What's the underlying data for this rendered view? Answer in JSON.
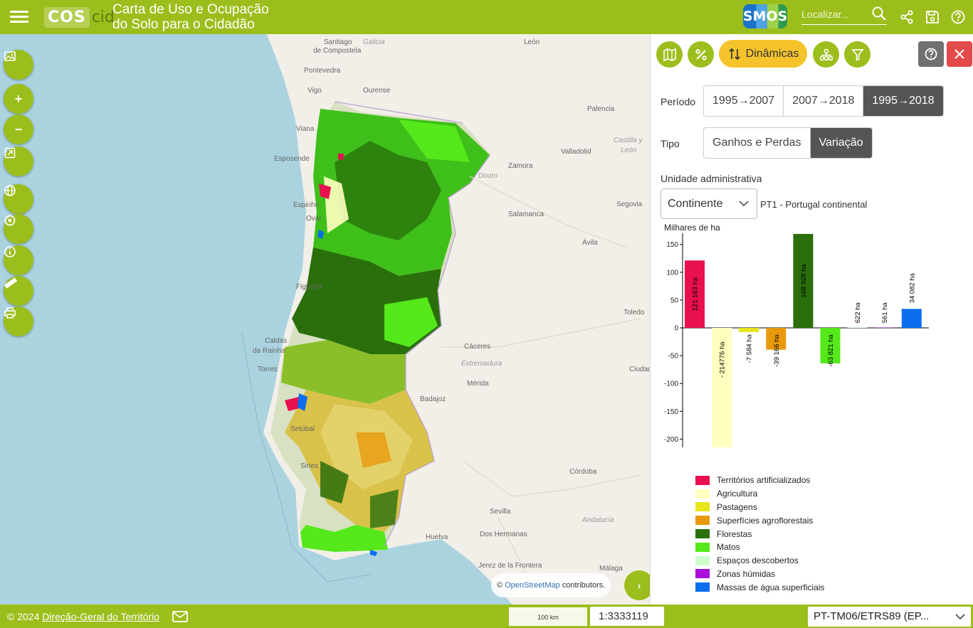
{
  "header": {
    "logo_main": "COS",
    "logo_sub": "cid",
    "title_line1": "Carta de Uso e Ocupação",
    "title_line2": "do Solo para o Cidadão",
    "partner_logo": "SMOS",
    "search_placeholder": "Localizar...",
    "icons": [
      "menu-icon",
      "search-icon",
      "share-icon",
      "save-icon",
      "help-icon"
    ]
  },
  "map": {
    "labels": [
      {
        "text": "Santiago",
        "style": "normal"
      },
      {
        "text": "de Compostela",
        "style": "normal"
      },
      {
        "text": "Galicia",
        "style": "italic"
      },
      {
        "text": "Pontevedra",
        "style": "normal"
      },
      {
        "text": "Vigo",
        "style": "normal"
      },
      {
        "text": "Ourense",
        "style": "normal"
      },
      {
        "text": "León",
        "style": "normal"
      },
      {
        "text": "Palencia",
        "style": "normal"
      },
      {
        "text": "Castilla y",
        "style": "italic"
      },
      {
        "text": "León",
        "style": "italic"
      },
      {
        "text": "Valladolid",
        "style": "normal"
      },
      {
        "text": "Zamora",
        "style": "normal"
      },
      {
        "text": "Douro",
        "style": "italic"
      },
      {
        "text": "Viana",
        "style": "normal"
      },
      {
        "text": "Esposende",
        "style": "normal"
      },
      {
        "text": "Espinho",
        "style": "normal"
      },
      {
        "text": "Ovar",
        "style": "normal"
      },
      {
        "text": "Salamanca",
        "style": "normal"
      },
      {
        "text": "Segovia",
        "style": "normal"
      },
      {
        "text": "Ávila",
        "style": "normal"
      },
      {
        "text": "Figueira",
        "style": "normal"
      },
      {
        "text": "Toledo",
        "style": "normal"
      },
      {
        "text": "Caldas",
        "style": "normal"
      },
      {
        "text": "da Rainha",
        "style": "normal"
      },
      {
        "text": "Cáceres",
        "style": "normal"
      },
      {
        "text": "Torres",
        "style": "normal"
      },
      {
        "text": "Extremadura",
        "style": "italic"
      },
      {
        "text": "Mérida",
        "style": "normal"
      },
      {
        "text": "Badajoz",
        "style": "normal"
      },
      {
        "text": "Ciudad",
        "style": "normal"
      },
      {
        "text": "Setúbal",
        "style": "normal"
      },
      {
        "text": "Sines",
        "style": "normal"
      },
      {
        "text": "Córdoba",
        "style": "normal"
      },
      {
        "text": "Sevilla",
        "style": "normal"
      },
      {
        "text": "Andalucía",
        "style": "italic"
      },
      {
        "text": "Dos Hermanas",
        "style": "normal"
      },
      {
        "text": "Huelva",
        "style": "normal"
      },
      {
        "text": "Jerez de la Frontera",
        "style": "normal"
      },
      {
        "text": "Málaga",
        "style": "normal"
      }
    ],
    "controls": [
      "image-icon",
      "zoom-in-icon",
      "zoom-out-icon",
      "fullscreen-icon",
      "globe-icon",
      "target-icon",
      "info-icon",
      "ruler-icon",
      "print-icon"
    ],
    "zoom_in": "+",
    "zoom_out": "−",
    "attribution_prefix": "©",
    "attribution_link": "OpenStreetMap",
    "attribution_suffix": "contributors.",
    "expand_label": "›",
    "colors": {
      "water": "#aad3df",
      "land": "#f2efe9",
      "border": "#b49ccb"
    }
  },
  "panel": {
    "dinamicas_label": "Dinâmicas",
    "periodo_label": "Período",
    "periodo_options": [
      {
        "label": "1995→2007",
        "active": false
      },
      {
        "label": "2007→2018",
        "active": false
      },
      {
        "label": "1995→2018",
        "active": true
      }
    ],
    "tipo_label": "Tipo",
    "tipo_options": [
      {
        "label": "Ganhos e Perdas",
        "active": false
      },
      {
        "label": "Variação",
        "active": true
      }
    ],
    "unidade_label": "Unidade administrativa",
    "unidade_value": "Continente",
    "unidade_code": "PT1 - Portugal continental",
    "colors": {
      "accent": "#9cbe1c",
      "highlight": "#f5c32c",
      "help": "#707070",
      "close": "#e34a4a"
    }
  },
  "chart_data": {
    "type": "bar",
    "ylabel": "Milhares de ha",
    "ylim": [
      -215,
      170
    ],
    "yticks": [
      150,
      100,
      50,
      0,
      -50,
      -100,
      -150,
      -200
    ],
    "categories": [
      "Territórios artificializados",
      "Agricultura",
      "Pastagens",
      "Superfícies agroflorestais",
      "Florestas",
      "Matos",
      "Espaços descobertos",
      "Zonas húmidas",
      "Massas de água superficiais"
    ],
    "values": [
      121.163,
      -214.776,
      -7.584,
      -39.166,
      168.928,
      -63.821,
      0.622,
      0.561,
      34.082
    ],
    "data_labels": [
      "121 163 ha",
      "- 214776 ha",
      "-7 584 ha",
      "-39 166 ha",
      "168 928 ha",
      "-63 821 ha",
      "622 ha",
      "561 ha",
      "34 082 ha"
    ],
    "colors": [
      "#e8104f",
      "#ffffc0",
      "#e6e61a",
      "#e89a0c",
      "#2a6f0c",
      "#55e81a",
      "#ccffcc",
      "#a90fd9",
      "#0a6eef"
    ],
    "legend": "bottom",
    "grid": false
  },
  "footer": {
    "copyright": "© 2024",
    "org_link": "Direção-Geral do Território",
    "scale_bar_label": "100 km",
    "scale_value": "1:3333119",
    "projection": "PT-TM06/ETRS89 (EP..."
  }
}
